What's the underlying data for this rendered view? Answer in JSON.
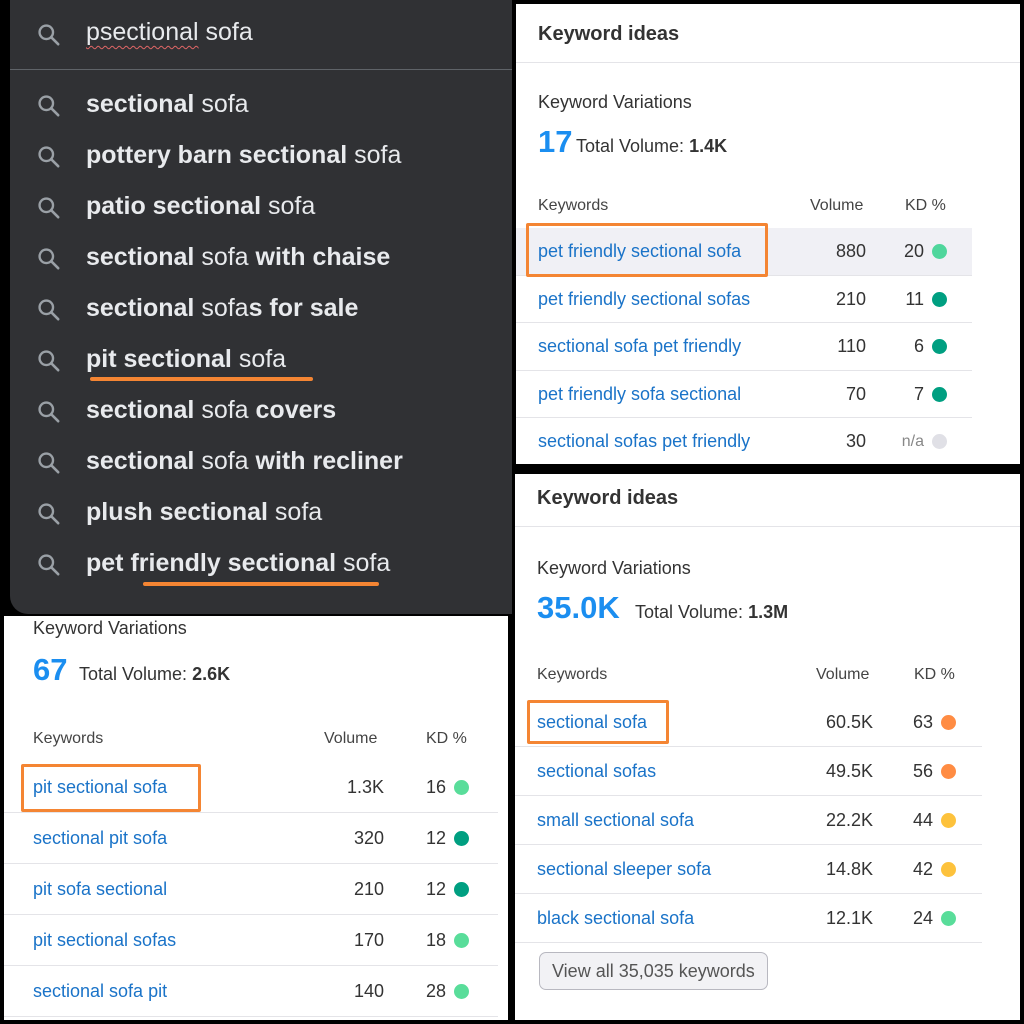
{
  "search": {
    "query_typed": "psectional",
    "query_rest": " sofa",
    "suggestions": [
      {
        "parts": [
          {
            "t": "sectional",
            "b": true
          },
          {
            "t": " sofa",
            "b": false
          }
        ]
      },
      {
        "parts": [
          {
            "t": "pottery barn sectional",
            "b": true
          },
          {
            "t": " sofa",
            "b": false
          }
        ]
      },
      {
        "parts": [
          {
            "t": "patio sectional",
            "b": true
          },
          {
            "t": " sofa",
            "b": false
          }
        ]
      },
      {
        "parts": [
          {
            "t": "sectional",
            "b": true
          },
          {
            "t": " sofa ",
            "b": false
          },
          {
            "t": "with chaise",
            "b": true
          }
        ]
      },
      {
        "parts": [
          {
            "t": "sectional",
            "b": true
          },
          {
            "t": " sofa",
            "b": false
          },
          {
            "t": "s for sale",
            "b": true
          }
        ]
      },
      {
        "parts": [
          {
            "t": "pit sectional",
            "b": true
          },
          {
            "t": " sofa",
            "b": false
          }
        ]
      },
      {
        "parts": [
          {
            "t": "sectional",
            "b": true
          },
          {
            "t": " sofa ",
            "b": false
          },
          {
            "t": "covers",
            "b": true
          }
        ]
      },
      {
        "parts": [
          {
            "t": "sectional",
            "b": true
          },
          {
            "t": " sofa ",
            "b": false
          },
          {
            "t": "with recliner",
            "b": true
          }
        ]
      },
      {
        "parts": [
          {
            "t": "plush sectional",
            "b": true
          },
          {
            "t": " sofa",
            "b": false
          }
        ]
      },
      {
        "parts": [
          {
            "t": "pet friendly sectional",
            "b": true
          },
          {
            "t": " sofa",
            "b": false
          }
        ]
      }
    ]
  },
  "card_pet": {
    "header": "Keyword ideas",
    "kv_label": "Keyword Variations",
    "count": "17",
    "total_label": "Total Volume:",
    "total_value": "1.4K",
    "col_keywords": "Keywords",
    "col_volume": "Volume",
    "col_kd": "KD %",
    "rows": [
      {
        "kw": "pet friendly sectional sofa",
        "vol": "880",
        "kd": "20",
        "color": "#4fd69c"
      },
      {
        "kw": "pet friendly sectional sofas",
        "vol": "210",
        "kd": "11",
        "color": "#009f81"
      },
      {
        "kw": "sectional sofa pet friendly",
        "vol": "110",
        "kd": "6",
        "color": "#009f81"
      },
      {
        "kw": "pet friendly sofa sectional",
        "vol": "70",
        "kd": "7",
        "color": "#009f81"
      },
      {
        "kw": "sectional sofas pet friendly",
        "vol": "30",
        "kd": "n/a",
        "color": "#e0e0e6"
      }
    ]
  },
  "card_pit": {
    "kv_label": "Keyword Variations",
    "count": "67",
    "total_label": "Total Volume:",
    "total_value": "2.6K",
    "col_keywords": "Keywords",
    "col_volume": "Volume",
    "col_kd": "KD %",
    "rows": [
      {
        "kw": "pit sectional sofa",
        "vol": "1.3K",
        "kd": "16",
        "color": "#59dd9a"
      },
      {
        "kw": "sectional pit sofa",
        "vol": "320",
        "kd": "12",
        "color": "#009f81"
      },
      {
        "kw": "pit sofa sectional",
        "vol": "210",
        "kd": "12",
        "color": "#009f81"
      },
      {
        "kw": "pit sectional sofas",
        "vol": "170",
        "kd": "18",
        "color": "#59dd9a"
      },
      {
        "kw": "sectional sofa pit",
        "vol": "140",
        "kd": "28",
        "color": "#59dd9a"
      }
    ]
  },
  "card_main": {
    "header": "Keyword ideas",
    "kv_label": "Keyword Variations",
    "count": "35.0K",
    "total_label": "Total Volume:",
    "total_value": "1.3M",
    "col_keywords": "Keywords",
    "col_volume": "Volume",
    "col_kd": "KD %",
    "rows": [
      {
        "kw": "sectional sofa",
        "vol": "60.5K",
        "kd": "63",
        "color": "#ff8c43"
      },
      {
        "kw": "sectional sofas",
        "vol": "49.5K",
        "kd": "56",
        "color": "#ff8c43"
      },
      {
        "kw": "small sectional sofa",
        "vol": "22.2K",
        "kd": "44",
        "color": "#fdc23c"
      },
      {
        "kw": "sectional sleeper sofa",
        "vol": "14.8K",
        "kd": "42",
        "color": "#fdc23c"
      },
      {
        "kw": "black sectional sofa",
        "vol": "12.1K",
        "kd": "24",
        "color": "#59dd9a"
      }
    ],
    "view_all": "View all 35,035 keywords"
  },
  "colors": {
    "accent_orange": "#f48533",
    "link_blue": "#1a73c8",
    "count_blue": "#1b8ef0"
  },
  "icons": {
    "suggestion": "search-icon"
  }
}
